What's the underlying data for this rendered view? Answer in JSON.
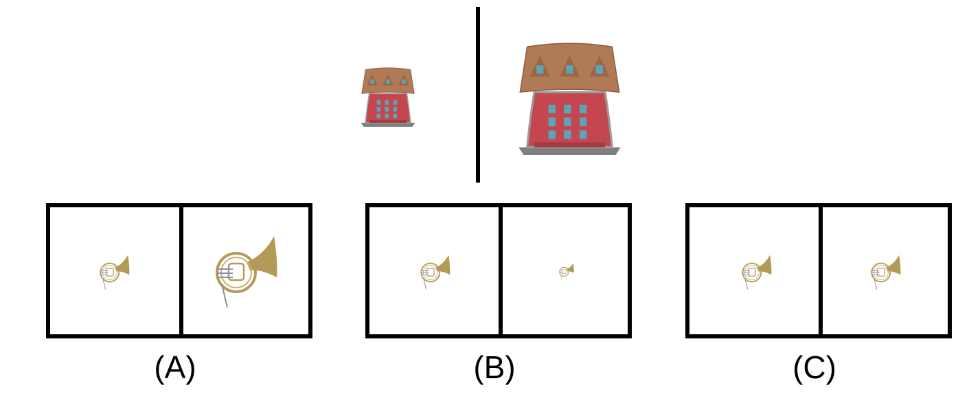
{
  "example": {
    "left": {
      "object": "building",
      "scale": 0.42
    },
    "right": {
      "object": "building",
      "scale": 1.0
    }
  },
  "options": [
    {
      "label": "(A)",
      "left": {
        "object": "french-horn",
        "scale": 0.42
      },
      "right": {
        "object": "french-horn",
        "scale": 1.0
      }
    },
    {
      "label": "(B)",
      "left": {
        "object": "french-horn",
        "scale": 0.42
      },
      "right": {
        "object": "french-horn",
        "scale": 0.2
      }
    },
    {
      "label": "(C)",
      "left": {
        "object": "french-horn",
        "scale": 0.42
      },
      "right": {
        "object": "french-horn",
        "scale": 0.42
      }
    }
  ],
  "colors": {
    "roof": "#b07a55",
    "wall": "#c4474f",
    "window": "#5aa6b8",
    "base": "#7f7f7f",
    "brass": "#b39a57"
  }
}
